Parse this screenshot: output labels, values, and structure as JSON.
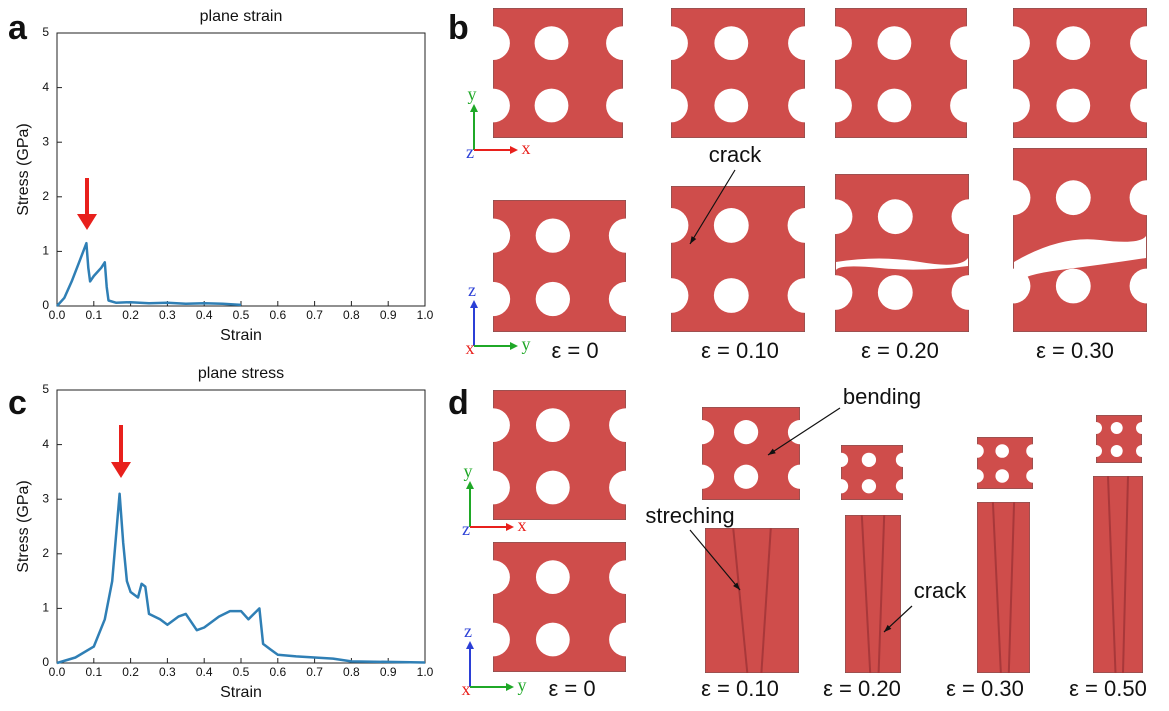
{
  "chart_data": [
    {
      "type": "line",
      "title": "plane strain",
      "x_label": "Strain",
      "y_label": "Stress (GPa)",
      "xlim": [
        0,
        1
      ],
      "ylim": [
        0,
        5
      ],
      "xticks": [
        {
          "value": 0,
          "label": "0.0"
        },
        0.1,
        0.2,
        0.3,
        0.4,
        0.5,
        0.6,
        0.7,
        0.8,
        0.9,
        {
          "value": 1,
          "label": "1.0"
        }
      ],
      "yticks": [
        0,
        1,
        2,
        3,
        4,
        5
      ],
      "series": [
        {
          "color": "#2f7fb5",
          "x": [
            0,
            0.02,
            0.04,
            0.06,
            0.08,
            0.085,
            0.09,
            0.1,
            0.12,
            0.13,
            0.135,
            0.14,
            0.16,
            0.2,
            0.25,
            0.3,
            0.35,
            0.4,
            0.45,
            0.5
          ],
          "values": [
            0,
            0.15,
            0.45,
            0.8,
            1.15,
            0.7,
            0.45,
            0.55,
            0.7,
            0.8,
            0.35,
            0.1,
            0.06,
            0.07,
            0.05,
            0.06,
            0.04,
            0.05,
            0.04,
            0.02
          ]
        }
      ]
    },
    {
      "type": "line",
      "title": "plane stress",
      "x_label": "Strain",
      "y_label": "Stress (GPa)",
      "xlim": [
        0,
        1
      ],
      "ylim": [
        0,
        5
      ],
      "xticks": [
        {
          "value": 0,
          "label": "0.0"
        },
        0.1,
        0.2,
        0.3,
        0.4,
        0.5,
        0.6,
        0.7,
        0.8,
        0.9,
        {
          "value": 1,
          "label": "1.0"
        }
      ],
      "yticks": [
        0,
        1,
        2,
        3,
        4,
        5
      ],
      "series": [
        {
          "color": "#2f7fb5",
          "x": [
            0,
            0.05,
            0.1,
            0.13,
            0.15,
            0.17,
            0.18,
            0.19,
            0.2,
            0.22,
            0.23,
            0.24,
            0.25,
            0.28,
            0.3,
            0.33,
            0.35,
            0.38,
            0.4,
            0.44,
            0.47,
            0.5,
            0.52,
            0.55,
            0.56,
            0.58,
            0.6,
            0.65,
            0.7,
            0.75,
            0.8,
            0.9,
            1.0
          ],
          "values": [
            0,
            0.1,
            0.3,
            0.8,
            1.5,
            3.1,
            2.2,
            1.5,
            1.3,
            1.2,
            1.45,
            1.4,
            0.9,
            0.8,
            0.7,
            0.85,
            0.9,
            0.6,
            0.65,
            0.85,
            0.95,
            0.95,
            0.8,
            1.0,
            0.35,
            0.25,
            0.15,
            0.12,
            0.1,
            0.08,
            0.03,
            0.02,
            0.01
          ]
        }
      ]
    }
  ],
  "figure": {
    "panel_letters": [
      "a",
      "b",
      "c",
      "d"
    ],
    "b_strains": [
      "ε = 0",
      "ε = 0.10",
      "ε = 0.20",
      "ε = 0.30"
    ],
    "d_strains": [
      "ε = 0",
      "ε = 0.10",
      "ε = 0.20",
      "ε = 0.30",
      "ε = 0.50"
    ],
    "annotations": [
      "crack",
      "bending",
      "streching",
      "crack"
    ],
    "triads": [
      [
        "y",
        "z",
        "x"
      ],
      [
        "z",
        "x",
        "y"
      ],
      [
        "y",
        "z",
        "x"
      ],
      [
        "z",
        "x",
        "y"
      ]
    ]
  }
}
